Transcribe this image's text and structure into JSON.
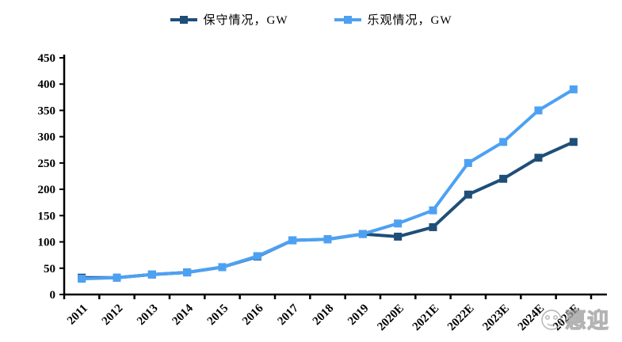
{
  "legend": {
    "items": [
      {
        "label": "保守情况，GW",
        "color": "#1F4E79"
      },
      {
        "label": "乐观情况，GW",
        "color": "#4DA1F2"
      }
    ]
  },
  "watermark": {
    "text": "惠迎"
  },
  "chart_data": {
    "type": "line",
    "title": "",
    "xlabel": "",
    "ylabel": "",
    "categories": [
      "2011",
      "2012",
      "2013",
      "2014",
      "2015",
      "2016",
      "2017",
      "2018",
      "2019",
      "2020E",
      "2021E",
      "2022E",
      "2023E",
      "2024E",
      "2025E"
    ],
    "series": [
      {
        "name": "保守情况，GW",
        "color": "#1F4E79",
        "marker": "square",
        "values": [
          32,
          32,
          38,
          42,
          52,
          72,
          103,
          105,
          115,
          110,
          128,
          190,
          220,
          260,
          290
        ]
      },
      {
        "name": "乐观情况，GW",
        "color": "#4DA1F2",
        "marker": "square",
        "values": [
          30,
          32,
          38,
          42,
          52,
          73,
          103,
          105,
          115,
          135,
          160,
          250,
          290,
          350,
          390
        ]
      }
    ],
    "ylim": [
      0,
      450
    ],
    "yticks": [
      0,
      50,
      100,
      150,
      200,
      250,
      300,
      350,
      400,
      450
    ],
    "grid": false,
    "legend_position": "top-center",
    "axis_color": "#000000"
  }
}
